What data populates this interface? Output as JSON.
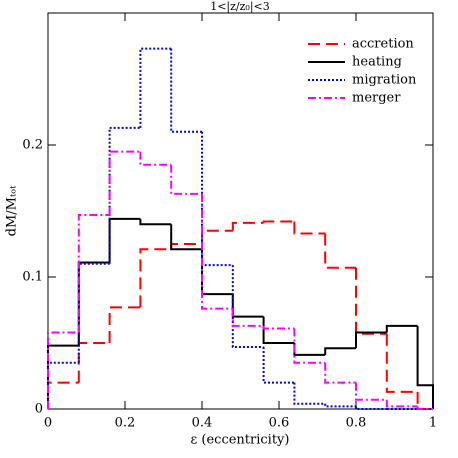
{
  "chart_data": {
    "type": "histogram",
    "title": "1<|z/z₀|<3",
    "x_label": "ε (eccentricity)",
    "y_label": "dM/Mₜₒₜ",
    "bins": [
      0,
      0.08,
      0.16,
      0.24,
      0.32,
      0.4,
      0.48,
      0.56,
      0.64,
      0.72,
      0.8,
      0.88,
      0.96,
      1
    ],
    "series": [
      {
        "name": "accretion",
        "color": "#ff0000",
        "dash": "12,6",
        "values": [
          0.02,
          0.05,
          0.077,
          0.121,
          0.125,
          0.135,
          0.141,
          0.142,
          0.133,
          0.107,
          0.057,
          0.013,
          0.0
        ]
      },
      {
        "name": "heating",
        "color": "#000000",
        "dash": "none",
        "values": [
          0.048,
          0.111,
          0.144,
          0.14,
          0.121,
          0.087,
          0.07,
          0.05,
          0.041,
          0.046,
          0.058,
          0.063,
          0.018
        ]
      },
      {
        "name": "migration",
        "color": "#0000ff",
        "dash": "2,2",
        "values": [
          0.035,
          0.11,
          0.213,
          0.273,
          0.21,
          0.109,
          0.047,
          0.02,
          0.004,
          0.002,
          0.0,
          0.0,
          0.0
        ]
      },
      {
        "name": "merger",
        "color": "#ff00ff",
        "dash": "8,3,2,3",
        "values": [
          0.058,
          0.147,
          0.195,
          0.185,
          0.163,
          0.076,
          0.063,
          0.061,
          0.035,
          0.02,
          0.007,
          0.002,
          0.0
        ]
      }
    ],
    "xlim": [
      0,
      1
    ],
    "ylim": [
      0,
      0.3
    ],
    "xticks": [
      0,
      0.2,
      0.4,
      0.6,
      0.8,
      1
    ],
    "yticks": [
      0,
      0.1,
      0.2
    ],
    "legend": "upper right"
  }
}
